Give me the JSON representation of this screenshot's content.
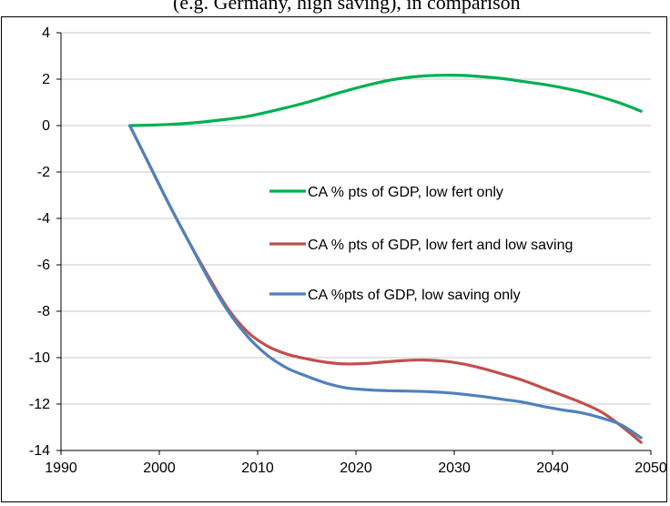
{
  "caption_fragment": "(e.g. Germany, high saving), in comparison",
  "chart_data": {
    "type": "line",
    "title": "",
    "xlabel": "",
    "ylabel": "",
    "xlim": [
      1990,
      2050
    ],
    "ylim": [
      -14,
      4
    ],
    "xticks": [
      1990,
      2000,
      2010,
      2020,
      2030,
      2040,
      2050
    ],
    "yticks": [
      -14,
      -12,
      -10,
      -8,
      -6,
      -4,
      -2,
      0,
      2,
      4
    ],
    "grid": "horizontal",
    "series": [
      {
        "name": "CA % pts of GDP, low fert only",
        "color": "#00b050",
        "points": [
          [
            1997,
            0
          ],
          [
            1999,
            0.02
          ],
          [
            2001,
            0.05
          ],
          [
            2003,
            0.1
          ],
          [
            2005,
            0.18
          ],
          [
            2007,
            0.28
          ],
          [
            2009,
            0.4
          ],
          [
            2011,
            0.58
          ],
          [
            2013,
            0.78
          ],
          [
            2015,
            1.0
          ],
          [
            2017,
            1.25
          ],
          [
            2019,
            1.5
          ],
          [
            2021,
            1.72
          ],
          [
            2023,
            1.92
          ],
          [
            2025,
            2.06
          ],
          [
            2027,
            2.14
          ],
          [
            2029,
            2.17
          ],
          [
            2031,
            2.16
          ],
          [
            2033,
            2.1
          ],
          [
            2035,
            2.02
          ],
          [
            2037,
            1.9
          ],
          [
            2039,
            1.78
          ],
          [
            2041,
            1.63
          ],
          [
            2043,
            1.45
          ],
          [
            2045,
            1.22
          ],
          [
            2047,
            0.95
          ],
          [
            2049,
            0.62
          ]
        ]
      },
      {
        "name": "CA % pts of GDP, low fert and low saving",
        "color": "#c0504d",
        "points": [
          [
            1997,
            0
          ],
          [
            1999,
            -1.7
          ],
          [
            2001,
            -3.4
          ],
          [
            2003,
            -5.0
          ],
          [
            2005,
            -6.5
          ],
          [
            2007,
            -7.9
          ],
          [
            2009,
            -8.9
          ],
          [
            2011,
            -9.5
          ],
          [
            2013,
            -9.85
          ],
          [
            2015,
            -10.05
          ],
          [
            2017,
            -10.2
          ],
          [
            2019,
            -10.27
          ],
          [
            2021,
            -10.25
          ],
          [
            2023,
            -10.18
          ],
          [
            2025,
            -10.12
          ],
          [
            2027,
            -10.1
          ],
          [
            2029,
            -10.15
          ],
          [
            2031,
            -10.28
          ],
          [
            2033,
            -10.48
          ],
          [
            2035,
            -10.72
          ],
          [
            2037,
            -10.98
          ],
          [
            2039,
            -11.3
          ],
          [
            2041,
            -11.62
          ],
          [
            2043,
            -11.95
          ],
          [
            2045,
            -12.35
          ],
          [
            2047,
            -12.95
          ],
          [
            2049,
            -13.65
          ]
        ]
      },
      {
        "name": "CA %pts of GDP, low saving only",
        "color": "#4f81bd",
        "points": [
          [
            1997,
            0
          ],
          [
            1999,
            -1.7
          ],
          [
            2001,
            -3.4
          ],
          [
            2003,
            -5.0
          ],
          [
            2005,
            -6.6
          ],
          [
            2007,
            -8.0
          ],
          [
            2009,
            -9.1
          ],
          [
            2011,
            -9.9
          ],
          [
            2013,
            -10.45
          ],
          [
            2015,
            -10.8
          ],
          [
            2017,
            -11.1
          ],
          [
            2019,
            -11.3
          ],
          [
            2021,
            -11.38
          ],
          [
            2023,
            -11.42
          ],
          [
            2025,
            -11.44
          ],
          [
            2027,
            -11.46
          ],
          [
            2029,
            -11.5
          ],
          [
            2031,
            -11.58
          ],
          [
            2033,
            -11.68
          ],
          [
            2035,
            -11.8
          ],
          [
            2037,
            -11.92
          ],
          [
            2039,
            -12.1
          ],
          [
            2041,
            -12.25
          ],
          [
            2043,
            -12.38
          ],
          [
            2045,
            -12.6
          ],
          [
            2047,
            -12.9
          ],
          [
            2049,
            -13.45
          ]
        ]
      }
    ],
    "legend": {
      "position": "center-right"
    }
  }
}
